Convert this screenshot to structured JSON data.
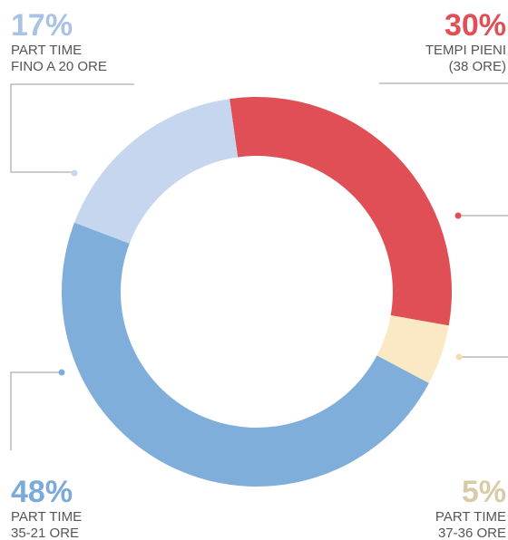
{
  "chart_data": {
    "type": "donut",
    "categories": [
      [
        "TEMPI PIENI",
        "(38 ORE)"
      ],
      [
        "PART TIME",
        "37-36 ORE"
      ],
      [
        "PART TIME",
        "35-21 ORE"
      ],
      [
        "PART TIME",
        "FINO A 20 ORE"
      ]
    ],
    "values": [
      30,
      5,
      48,
      17
    ],
    "value_labels": [
      "30%",
      "5%",
      "48%",
      "17%"
    ],
    "colors": [
      "#e04f55",
      "#fbe9c6",
      "#80aedb",
      "#c5d6ee"
    ],
    "label_colors": [
      "#e04f55",
      "#d8cba8",
      "#7aaada",
      "#a9c2e6"
    ]
  }
}
